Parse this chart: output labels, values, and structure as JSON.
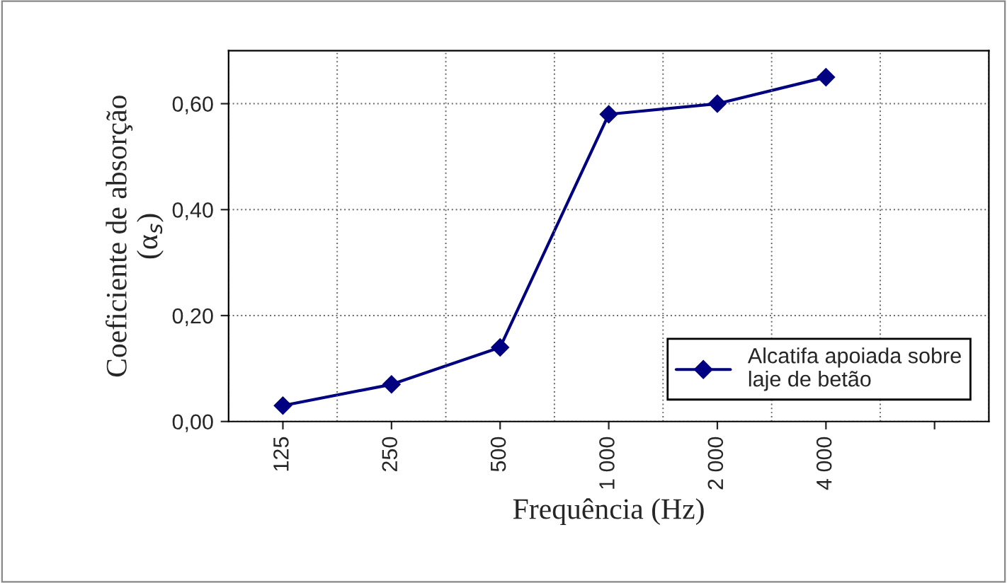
{
  "chart_data": {
    "type": "line",
    "xlabel": "Frequência (Hz)",
    "ylabel": "Coeficiente de absorção\n(α$_{s}$)",
    "categories": [
      "125",
      "250",
      "500",
      "1 000",
      "2 000",
      "4 000",
      null
    ],
    "series": [
      {
        "name": "Alcatifa apoiada sobre\nlaje de betão",
        "color": "#000080",
        "values": [
          0.03,
          0.07,
          0.14,
          0.58,
          0.6,
          0.65,
          null
        ]
      }
    ],
    "ylim": [
      0,
      0.7
    ],
    "yticks": [
      {
        "value": 0,
        "label": "0,00"
      },
      {
        "value": 0.2,
        "label": "0,20"
      },
      {
        "value": 0.4,
        "label": "0,40"
      },
      {
        "value": 0.6,
        "label": "0,60"
      }
    ],
    "grid": true,
    "legend": "bottom right",
    "marker": "diamond",
    "line_style": "solid"
  }
}
